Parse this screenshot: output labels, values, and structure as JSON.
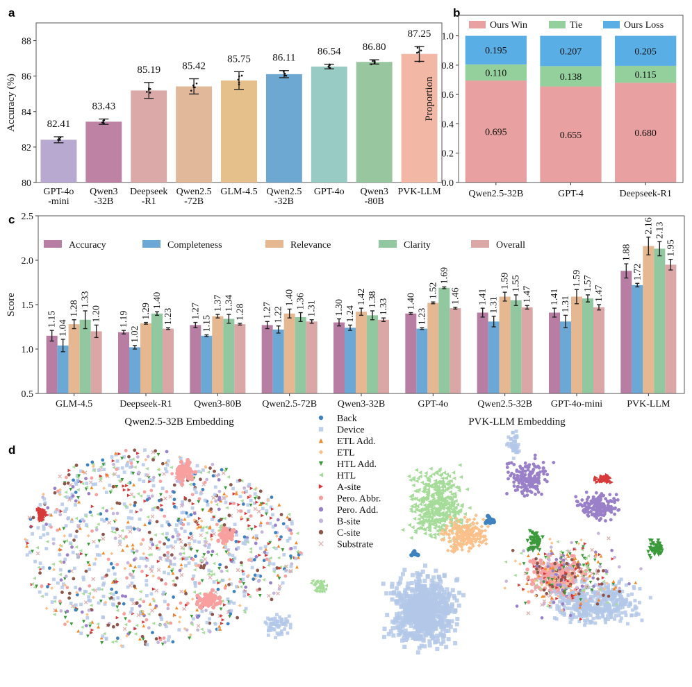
{
  "panels": {
    "a": "a",
    "b": "b",
    "c": "c",
    "d": "d"
  },
  "chart_data": [
    {
      "type": "bar",
      "panel": "a",
      "ylabel": "Accuracy (%)",
      "ylim": [
        80,
        89
      ],
      "yticks": [
        80,
        82,
        84,
        86,
        88
      ],
      "categories": [
        "GPT-4o\n-mini",
        "Qwen3\n-32B",
        "Deepseek\n-R1",
        "Qwen2.5\n-72B",
        "GLM-4.5",
        "Qwen2.5\n-32B",
        "GPT-4o",
        "Qwen3\n-80B",
        "PVK-LLM"
      ],
      "values": [
        82.41,
        83.43,
        85.19,
        85.42,
        85.75,
        86.11,
        86.54,
        86.8,
        87.25
      ],
      "value_labels": [
        "82.41",
        "83.43",
        "85.19",
        "85.42",
        "85.75",
        "86.11",
        "86.54",
        "86.80",
        "87.25"
      ],
      "errors": [
        0.17,
        0.15,
        0.45,
        0.43,
        0.5,
        0.2,
        0.13,
        0.12,
        0.42
      ],
      "colors": [
        "#b7a9d0",
        "#bd82a4",
        "#dca9a9",
        "#e1b899",
        "#e5c08a",
        "#6da8d2",
        "#98cbc3",
        "#98c79f",
        "#f2b8a5"
      ]
    },
    {
      "type": "stacked-bar",
      "panel": "b",
      "ylabel": "Proportion",
      "ylim": [
        0,
        1.14
      ],
      "yticks": [
        "0.0",
        "0.2",
        "0.4",
        "0.6",
        "0.8",
        "1.0"
      ],
      "categories": [
        "Qwen2.5-32B",
        "GPT-4",
        "Deepseek-R1"
      ],
      "legend_position": "top",
      "series": [
        {
          "name": "Ours Win",
          "values": [
            0.695,
            0.655,
            0.68
          ],
          "labels": [
            "0.695",
            "0.655",
            "0.680"
          ],
          "color": "#e8a1a0"
        },
        {
          "name": "Tie",
          "values": [
            0.11,
            0.138,
            0.115
          ],
          "labels": [
            "0.110",
            "0.138",
            "0.115"
          ],
          "color": "#93d09c"
        },
        {
          "name": "Ours Loss",
          "values": [
            0.195,
            0.207,
            0.205
          ],
          "labels": [
            "0.195",
            "0.207",
            "0.205"
          ],
          "color": "#5aaee6"
        }
      ]
    },
    {
      "type": "grouped-bar",
      "panel": "c",
      "ylabel": "Score",
      "ylim": [
        0.5,
        2.5
      ],
      "yticks": [
        "0.5",
        "1.0",
        "1.5",
        "2.0",
        "2.5"
      ],
      "categories": [
        "GLM-4.5",
        "Deepseek-R1",
        "Qwen3-80B",
        "Qwen2.5-72B",
        "Qwen3-32B",
        "GPT-4o",
        "Qwen2.5-32B",
        "GPT-4o-mini",
        "PVK-LLM"
      ],
      "legend_position": "top",
      "series": [
        {
          "name": "Accuracy",
          "color": "#b87da3",
          "values": [
            1.15,
            1.19,
            1.27,
            1.27,
            1.3,
            1.4,
            1.41,
            1.41,
            1.88
          ],
          "labels": [
            "1.15",
            "1.19",
            "1.27",
            "1.27",
            "1.30",
            "1.40",
            "1.41",
            "1.41",
            "1.88"
          ],
          "errors": [
            0.06,
            0.02,
            0.03,
            0.04,
            0.04,
            0.01,
            0.05,
            0.05,
            0.08
          ]
        },
        {
          "name": "Completeness",
          "color": "#6ba8d6",
          "values": [
            1.04,
            1.02,
            1.15,
            1.22,
            1.24,
            1.23,
            1.31,
            1.31,
            1.72
          ],
          "labels": [
            "1.04",
            "1.02",
            "1.15",
            "1.22",
            "1.24",
            "1.23",
            "1.31",
            "1.31",
            "1.72"
          ],
          "errors": [
            0.07,
            0.02,
            0.01,
            0.04,
            0.03,
            0.01,
            0.06,
            0.07,
            0.02
          ]
        },
        {
          "name": "Relevance",
          "color": "#e5b892",
          "values": [
            1.28,
            1.29,
            1.37,
            1.4,
            1.42,
            1.52,
            1.59,
            1.59,
            2.16
          ],
          "labels": [
            "1.28",
            "1.29",
            "1.37",
            "1.40",
            "1.42",
            "1.52",
            "1.59",
            "1.59",
            "2.16"
          ],
          "errors": [
            0.05,
            0.01,
            0.02,
            0.05,
            0.04,
            0.01,
            0.05,
            0.08,
            0.1
          ]
        },
        {
          "name": "Clarity",
          "color": "#92c8a0",
          "values": [
            1.33,
            1.4,
            1.34,
            1.36,
            1.38,
            1.69,
            1.55,
            1.57,
            2.13
          ],
          "labels": [
            "1.33",
            "1.40",
            "1.34",
            "1.36",
            "1.38",
            "1.69",
            "1.55",
            "1.57",
            "2.13"
          ],
          "errors": [
            0.1,
            0.02,
            0.05,
            0.05,
            0.05,
            0.01,
            0.06,
            0.04,
            0.08
          ]
        },
        {
          "name": "Overall",
          "color": "#dba6a6",
          "values": [
            1.2,
            1.23,
            1.28,
            1.31,
            1.33,
            1.46,
            1.47,
            1.47,
            1.95
          ],
          "labels": [
            "1.20",
            "1.23",
            "1.28",
            "1.31",
            "1.33",
            "1.46",
            "1.47",
            "1.47",
            "1.95"
          ],
          "errors": [
            0.07,
            0.01,
            0.01,
            0.02,
            0.02,
            0.01,
            0.02,
            0.03,
            0.06
          ]
        }
      ]
    },
    {
      "type": "scatter",
      "panel": "d",
      "titles": [
        "Qwen2.5-32B Embedding",
        "PVK-LLM Embedding"
      ],
      "legend_position": "center",
      "classes": [
        {
          "name": "Back",
          "color": "#3f82c0",
          "marker": "circle"
        },
        {
          "name": "Device",
          "color": "#b3c8e8",
          "marker": "square"
        },
        {
          "name": "ETL Add.",
          "color": "#f38a2a",
          "marker": "triangle-up"
        },
        {
          "name": "ETL",
          "color": "#fcc08a",
          "marker": "diamond"
        },
        {
          "name": "HTL Add.",
          "color": "#3a9a3a",
          "marker": "triangle-down"
        },
        {
          "name": "HTL",
          "color": "#a6dc9a",
          "marker": "triangle-left"
        },
        {
          "name": "A-site",
          "color": "#d63a3a",
          "marker": "triangle-right"
        },
        {
          "name": "Pero. Abbr.",
          "color": "#f8a0a0",
          "marker": "octagon"
        },
        {
          "name": "Pero. Add.",
          "color": "#9a80c8",
          "marker": "star"
        },
        {
          "name": "B-site",
          "color": "#c6b6dc",
          "marker": "hexagon"
        },
        {
          "name": "C-site",
          "color": "#8c564b",
          "marker": "circle"
        },
        {
          "name": "Substrate",
          "color": "#e0b0b0",
          "marker": "x"
        }
      ]
    }
  ]
}
